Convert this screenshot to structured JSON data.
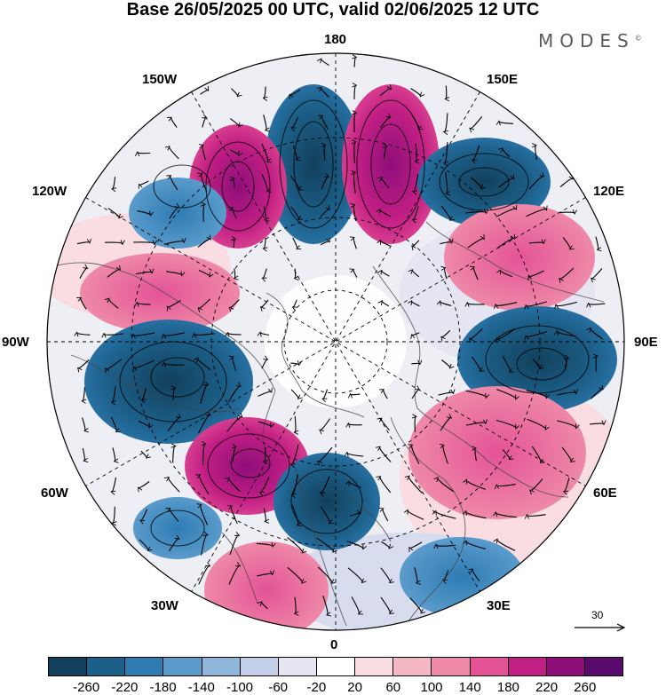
{
  "title": "Base 26/05/2025 00 UTC, valid 02/06/2025 12 UTC",
  "brand": "MODES",
  "brand_mark": "©",
  "longitude_labels": {
    "lon_180": "180",
    "lon_150e": "150E",
    "lon_120e": "120E",
    "lon_90e": "90E",
    "lon_60e": "60E",
    "lon_30e": "30E",
    "lon_0": "0",
    "lon_30w": "30W",
    "lon_60w": "60W",
    "lon_90w": "90W",
    "lon_120w": "120W",
    "lon_150w": "150W"
  },
  "reference_vector": "30",
  "colorbar": {
    "colors": [
      "#12405c",
      "#1c5f88",
      "#2e7bb3",
      "#5a9bcb",
      "#8fb7dc",
      "#c3cfe8",
      "#e6e6f2",
      "#ffffff",
      "#f9dde2",
      "#f4b7c4",
      "#ee89a8",
      "#e45396",
      "#c21f84",
      "#8e0e7a",
      "#5b0a6e"
    ],
    "tick_labels": [
      "-260",
      "-220",
      "-180",
      "-140",
      "-100",
      "-60",
      "-20",
      "20",
      "60",
      "100",
      "140",
      "180",
      "220",
      "260"
    ]
  }
}
